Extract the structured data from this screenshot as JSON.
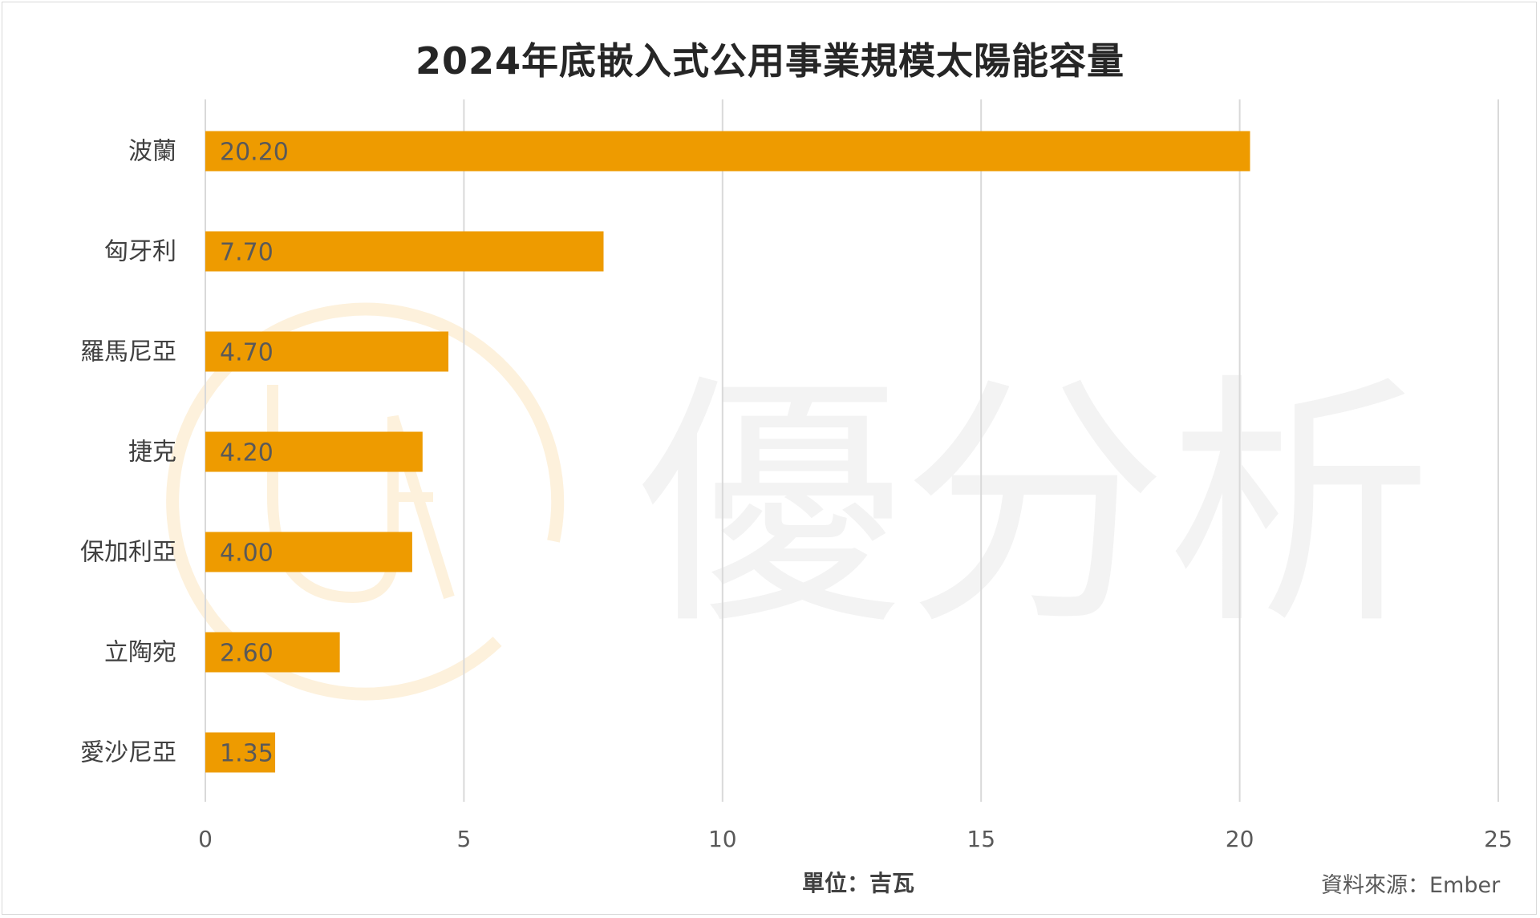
{
  "chart_data": {
    "type": "bar",
    "orientation": "horizontal",
    "title": "2024年底嵌入式公用事業規模太陽能容量",
    "categories": [
      "波蘭",
      "匈牙利",
      "羅馬尼亞",
      "捷克",
      "保加利亞",
      "立陶宛",
      "愛沙尼亞"
    ],
    "values": [
      20.2,
      7.7,
      4.7,
      4.2,
      4.0,
      2.6,
      1.35
    ],
    "value_labels": [
      "20.20",
      "7.70",
      "4.70",
      "4.20",
      "4.00",
      "2.60",
      "1.35"
    ],
    "x_ticks": [
      "0",
      "5",
      "10",
      "15",
      "20",
      "25"
    ],
    "xlim": [
      0,
      25
    ],
    "grid": true,
    "bar_color": "#EE9B00",
    "unit_label": "單位：吉瓦",
    "source": "資料來源：Ember"
  },
  "watermark": {
    "text": "優分析",
    "logo_letters": "UA",
    "color": "#f2f2f2",
    "logo_color": "#fdf1dc"
  }
}
